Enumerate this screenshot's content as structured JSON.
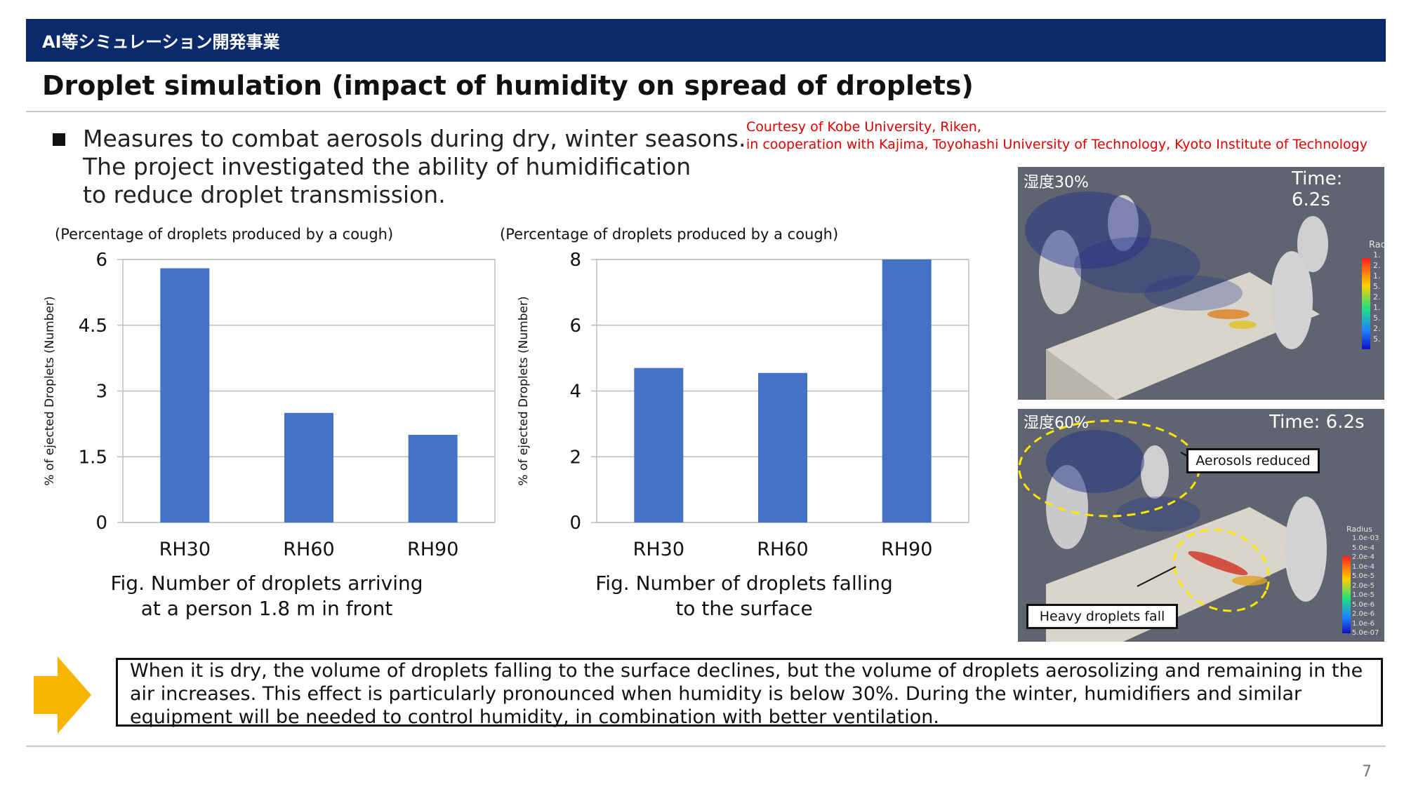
{
  "header": {
    "section_label": "AI等シミュレーション開発事業"
  },
  "slide": {
    "title": "Droplet simulation (impact of humidity on spread of droplets)",
    "bullet_lines": [
      "Measures to combat aerosols during dry, winter seasons.",
      "The project investigated the ability of humidification",
      "to reduce droplet transmission."
    ],
    "credit_line1": "Courtesy of Kobe University, Riken,",
    "credit_line2": "in cooperation with Kajima, Toyohashi University of Technology, Kyoto Institute of Technology",
    "page_number": "7"
  },
  "figures": [
    {
      "subtitle": "(Percentage of droplets produced by a cough)",
      "caption_line1": "Fig. Number of droplets arriving",
      "caption_line2": "at a person 1.8 m in front"
    },
    {
      "subtitle": "(Percentage of droplets produced by a cough)",
      "caption_line1": "Fig. Number of droplets falling",
      "caption_line2": "to the surface"
    }
  ],
  "chart_data": [
    {
      "type": "bar",
      "categories": [
        "RH30",
        "RH60",
        "RH90"
      ],
      "values": [
        5.8,
        2.5,
        2.0
      ],
      "title": "",
      "xlabel": "",
      "ylabel": "% of ejected Droplets (Number)",
      "ylim": [
        0,
        6
      ],
      "yticks": [
        "0",
        "1.5",
        "3",
        "4.5",
        "6"
      ],
      "grid": true,
      "color": "#4472c4"
    },
    {
      "type": "bar",
      "categories": [
        "RH30",
        "RH60",
        "RH90"
      ],
      "values": [
        4.7,
        4.55,
        8.0
      ],
      "title": "",
      "xlabel": "",
      "ylabel": "% of ejected Droplets (Number)",
      "ylim": [
        0,
        8
      ],
      "yticks": [
        "0",
        "2",
        "4",
        "6",
        "8"
      ],
      "grid": true,
      "color": "#4472c4"
    }
  ],
  "simulations": [
    {
      "humidity_label": "湿度30%",
      "time_label": "Time: 6.2s",
      "legend_title": "Rad",
      "legend_values": [
        "1.",
        "2.",
        "1.",
        "5.",
        "2.",
        "1.",
        "5.",
        "2.",
        "5."
      ]
    },
    {
      "humidity_label": "湿度60%",
      "time_label": "Time: 6.2s",
      "legend_title": "Radius",
      "legend_values": [
        "1.0e-03",
        "5.0e-4",
        "2.0e-4",
        "1.0e-4",
        "5.0e-5",
        "2.0e-5",
        "1.0e-5",
        "5.0e-6",
        "2.0e-6",
        "1.0e-6",
        "5.0e-07"
      ],
      "callout_aerosols": "Aerosols reduced",
      "callout_heavy": "Heavy droplets fall"
    }
  ],
  "conclusion": {
    "text": "When it is dry, the volume of droplets falling to the surface declines, but the volume of droplets aerosolizing and remaining in the air increases. This effect is particularly pronounced when humidity is below 30%. During the winter, humidifiers and similar equipment will be needed to control humidity, in combination with better ventilation."
  },
  "colors": {
    "header_bg": "#0b2a6b",
    "bar_blue": "#4472c4",
    "credit_red": "#e00000",
    "arrow_yellow": "#f7b500",
    "callout_ellipse": "#ffe600"
  }
}
